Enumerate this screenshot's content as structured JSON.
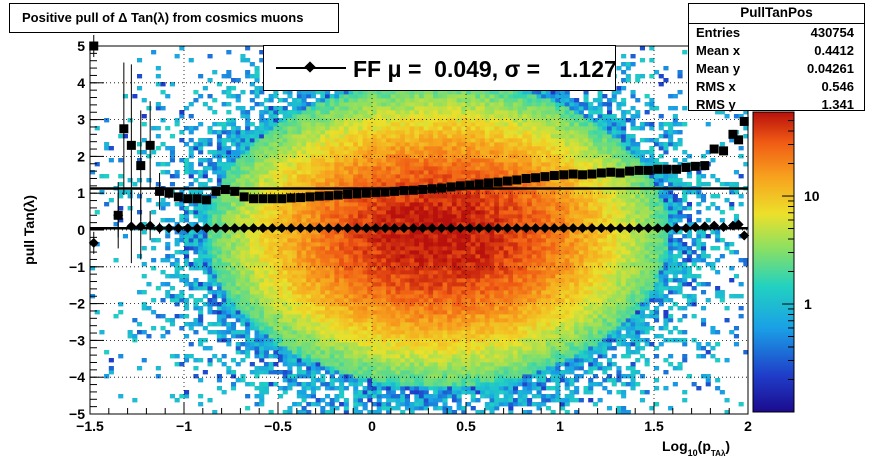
{
  "title": "Positive pull of Δ Tan(λ) from cosmics muons",
  "stats": {
    "name": "PullTanPos",
    "rows": [
      {
        "label": "Entries",
        "value": "430754"
      },
      {
        "label": "Mean x",
        "value": "0.4412"
      },
      {
        "label": "Mean y",
        "value": "0.04261"
      },
      {
        "label": "RMS x",
        "value": "0.546"
      },
      {
        "label": "RMS y",
        "value": "1.341"
      }
    ]
  },
  "legend": {
    "text": "FF μ =  0.049, σ =   1.127"
  },
  "chart_data": {
    "type": "heatmap",
    "title": "Positive pull of Δ Tan(λ) from cosmics muons",
    "xlabel_main": "Log",
    "xlabel_sub": "10",
    "xlabel_open": "(p",
    "xlabel_subscript": "TAλ",
    "xlabel_close": ")",
    "ylabel": "pull Tan(λ)",
    "xlim": [
      -1.5,
      2.0
    ],
    "ylim": [
      -5,
      5
    ],
    "x_ticks": [
      -1.5,
      -1,
      -0.5,
      0,
      0.5,
      1,
      1.5,
      2
    ],
    "x_tick_labels": [
      "−1.5",
      "−1",
      "−0.5",
      "0",
      "0.5",
      "1",
      "1.5",
      "2"
    ],
    "y_ticks": [
      -5,
      -4,
      -3,
      -2,
      -1,
      0,
      1,
      2,
      3,
      4,
      5
    ],
    "y_tick_labels": [
      "−5",
      "−4",
      "−3",
      "−2",
      "−1",
      "0",
      "1",
      "2",
      "3",
      "4",
      "5"
    ],
    "grid": true,
    "colorbar": {
      "scale": "log",
      "range": [
        0.1,
        60
      ],
      "ticks": [
        1,
        10
      ],
      "tick_labels": [
        "1",
        "10"
      ]
    },
    "density_model": {
      "x_center": 0.35,
      "y_center": -0.1,
      "x_sigma": 0.45,
      "y_sigma": 1.45,
      "peak_count": 55
    },
    "sigma_series": {
      "name": "sigma",
      "x": [
        -1.48,
        -1.35,
        -1.32,
        -1.28,
        -1.23,
        -1.18,
        -1.13,
        -1.08,
        -1.03,
        -0.98,
        -0.93,
        -0.88,
        -0.83,
        -0.78,
        -0.73,
        -0.68,
        -0.63,
        -0.58,
        -0.53,
        -0.48,
        -0.43,
        -0.38,
        -0.33,
        -0.28,
        -0.23,
        -0.18,
        -0.13,
        -0.08,
        -0.03,
        0.02,
        0.07,
        0.12,
        0.17,
        0.22,
        0.27,
        0.32,
        0.37,
        0.42,
        0.47,
        0.52,
        0.57,
        0.62,
        0.67,
        0.72,
        0.77,
        0.82,
        0.87,
        0.92,
        0.97,
        1.02,
        1.07,
        1.12,
        1.17,
        1.22,
        1.27,
        1.32,
        1.37,
        1.42,
        1.47,
        1.52,
        1.57,
        1.62,
        1.67,
        1.72,
        1.77,
        1.82,
        1.87,
        1.92,
        1.95,
        1.98
      ],
      "y": [
        5.0,
        0.4,
        2.75,
        2.3,
        1.75,
        2.3,
        1.05,
        1.0,
        0.9,
        0.85,
        0.85,
        0.82,
        1.05,
        1.1,
        1.05,
        0.9,
        0.85,
        0.85,
        0.85,
        0.85,
        0.87,
        0.88,
        0.9,
        0.92,
        0.93,
        0.95,
        0.97,
        0.98,
        1.0,
        1.02,
        1.03,
        1.05,
        1.07,
        1.08,
        1.1,
        1.12,
        1.14,
        1.17,
        1.2,
        1.22,
        1.25,
        1.28,
        1.3,
        1.33,
        1.36,
        1.4,
        1.42,
        1.45,
        1.48,
        1.5,
        1.52,
        1.5,
        1.52,
        1.55,
        1.57,
        1.55,
        1.6,
        1.62,
        1.62,
        1.65,
        1.65,
        1.65,
        1.7,
        1.73,
        1.75,
        2.2,
        2.15,
        2.6,
        2.45,
        2.95
      ],
      "yerr": [
        0.3,
        0.6,
        1.8,
        2.2,
        1.5,
        1.2,
        0.5,
        0.15,
        0.1,
        0.08,
        0.05,
        0.05,
        0.05,
        0.04,
        0.03,
        0.03,
        0.02,
        0.02,
        0.02,
        0.02,
        0.02,
        0.02,
        0.02,
        0.02,
        0.02,
        0.02,
        0.02,
        0.02,
        0.02,
        0.02,
        0.02,
        0.02,
        0.02,
        0.02,
        0.02,
        0.02,
        0.02,
        0.02,
        0.02,
        0.02,
        0.02,
        0.02,
        0.02,
        0.02,
        0.02,
        0.02,
        0.02,
        0.02,
        0.02,
        0.02,
        0.02,
        0.02,
        0.02,
        0.02,
        0.02,
        0.02,
        0.02,
        0.02,
        0.02,
        0.02,
        0.02,
        0.02,
        0.02,
        0.03,
        0.04,
        0.05,
        0.06,
        0.08,
        0.1,
        0.12
      ]
    },
    "mean_series": {
      "name": "mean",
      "x": [
        -1.48,
        -1.35,
        -1.28,
        -1.23,
        -1.18,
        -1.13,
        -1.08,
        -1.03,
        -0.98,
        -0.93,
        -0.88,
        -0.83,
        -0.78,
        -0.73,
        -0.68,
        -0.63,
        -0.58,
        -0.53,
        -0.48,
        -0.43,
        -0.38,
        -0.33,
        -0.28,
        -0.23,
        -0.18,
        -0.13,
        -0.08,
        -0.03,
        0.02,
        0.07,
        0.12,
        0.17,
        0.22,
        0.27,
        0.32,
        0.37,
        0.42,
        0.47,
        0.52,
        0.57,
        0.62,
        0.67,
        0.72,
        0.77,
        0.82,
        0.87,
        0.92,
        0.97,
        1.02,
        1.07,
        1.12,
        1.17,
        1.22,
        1.27,
        1.32,
        1.37,
        1.42,
        1.47,
        1.52,
        1.57,
        1.62,
        1.67,
        1.72,
        1.77,
        1.82,
        1.87,
        1.92,
        1.95,
        1.98
      ],
      "y": [
        -0.35,
        0.4,
        0.1,
        0.1,
        0.12,
        0.05,
        0.05,
        0.05,
        0.05,
        0.05,
        0.05,
        0.05,
        0.05,
        0.05,
        0.05,
        0.05,
        0.05,
        0.05,
        0.05,
        0.05,
        0.05,
        0.05,
        0.05,
        0.05,
        0.05,
        0.05,
        0.05,
        0.05,
        0.05,
        0.05,
        0.05,
        0.05,
        0.05,
        0.05,
        0.05,
        0.05,
        0.05,
        0.05,
        0.05,
        0.05,
        0.05,
        0.05,
        0.05,
        0.05,
        0.05,
        0.05,
        0.05,
        0.05,
        0.05,
        0.05,
        0.05,
        0.05,
        0.05,
        0.05,
        0.05,
        0.05,
        0.05,
        0.05,
        0.05,
        0.05,
        0.05,
        0.05,
        0.08,
        0.1,
        0.12,
        0.08,
        0.12,
        0.15,
        -0.15
      ],
      "yerr": [
        0.3,
        0.9,
        1.0,
        0.9,
        0.4,
        0.15,
        0.1,
        0.08,
        0.06,
        0.05,
        0.04,
        0.04,
        0.03,
        0.03,
        0.02,
        0.02,
        0.02,
        0.02,
        0.02,
        0.02,
        0.02,
        0.02,
        0.02,
        0.02,
        0.02,
        0.02,
        0.02,
        0.02,
        0.02,
        0.02,
        0.02,
        0.02,
        0.02,
        0.02,
        0.02,
        0.02,
        0.02,
        0.02,
        0.02,
        0.02,
        0.02,
        0.02,
        0.02,
        0.02,
        0.02,
        0.02,
        0.02,
        0.02,
        0.02,
        0.02,
        0.02,
        0.02,
        0.02,
        0.02,
        0.02,
        0.02,
        0.02,
        0.02,
        0.02,
        0.02,
        0.02,
        0.02,
        0.03,
        0.04,
        0.05,
        0.06,
        0.08,
        0.1,
        0.12
      ]
    },
    "sigma_fit_line": {
      "y": 1.127
    },
    "mean_fit_line": {
      "y": 0.049
    }
  }
}
